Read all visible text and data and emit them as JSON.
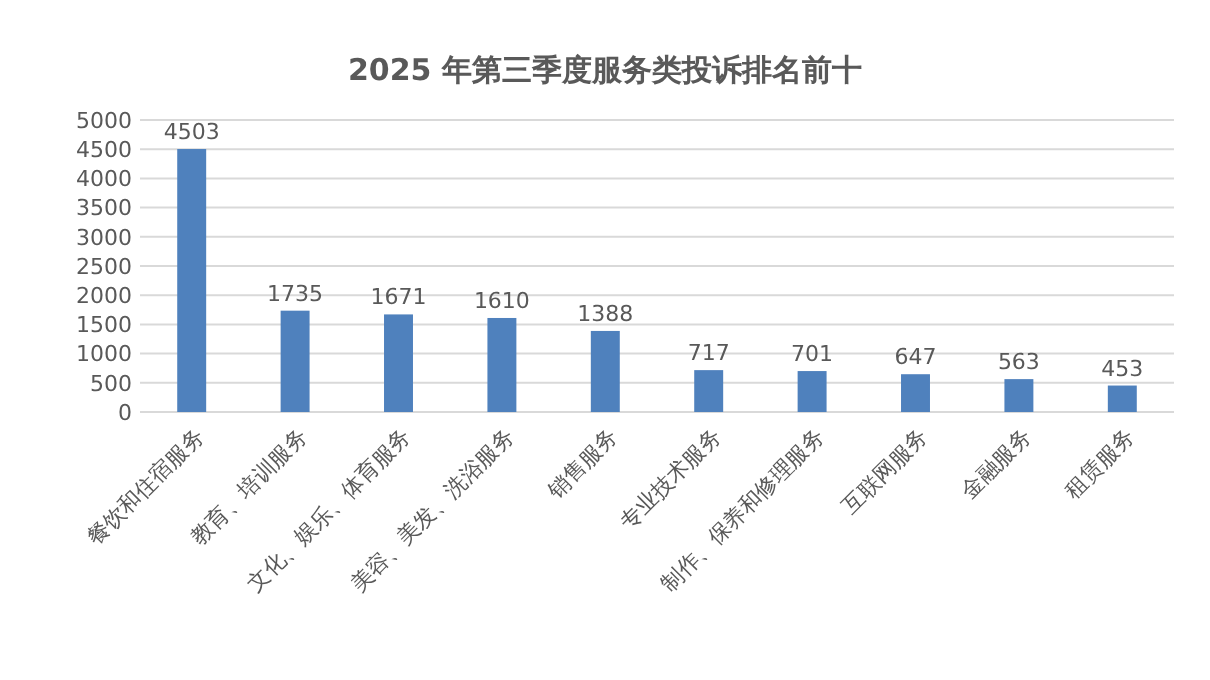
{
  "chart_data": {
    "type": "bar",
    "title": "2025 年第三季度服务类投诉排名前十",
    "categories": [
      "餐饮和住宿服务",
      "教育、培训服务",
      "文化、娱乐、体育服务",
      "美容、美发、洗浴服务",
      "销售服务",
      "专业技术服务",
      "制作、保养和修理服务",
      "互联网服务",
      "金融服务",
      "租赁服务"
    ],
    "values": [
      4503,
      1735,
      1671,
      1610,
      1388,
      717,
      701,
      647,
      563,
      453
    ],
    "color": "#4f81bd",
    "ylim": [
      0,
      5000
    ],
    "yticks": [
      0,
      500,
      1000,
      1500,
      2000,
      2500,
      3000,
      3500,
      4000,
      4500,
      5000
    ],
    "grid": true,
    "data_labels": true
  }
}
